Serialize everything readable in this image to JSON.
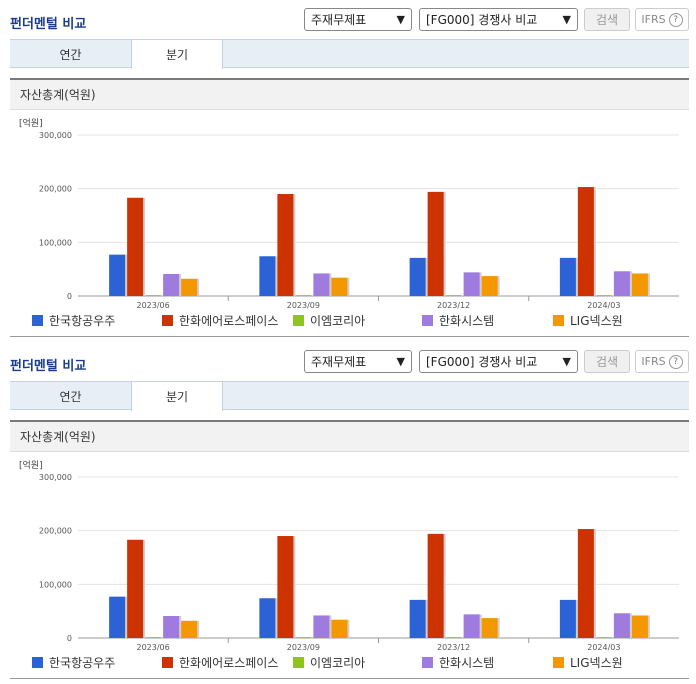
{
  "title": "펀더멘털 비교",
  "controls": {
    "select_a": "주재무제표",
    "select_b": "[FG000] 경쟁사 비교",
    "search_label": "검색",
    "ifrs_label": "IFRS",
    "help_glyph": "?"
  },
  "tabs": [
    {
      "label": "연간"
    },
    {
      "label": "분기"
    }
  ],
  "metric": "자산총계(억원)",
  "chart_data": {
    "type": "bar",
    "unit_label": "[억원]",
    "categories": [
      "2023/06",
      "2023/09",
      "2023/12",
      "2024/03"
    ],
    "y_ticks": [
      "0",
      "100,000",
      "200,000",
      "300,000"
    ],
    "ylim": [
      0,
      300000
    ],
    "grid": true,
    "legend_position": "bottom",
    "series": [
      {
        "name": "한국항공우주",
        "color": "#2b63d6",
        "values": [
          77000,
          74000,
          71000,
          71000
        ]
      },
      {
        "name": "한화에어로스페이스",
        "color": "#cc3300",
        "values": [
          183000,
          190000,
          194000,
          203000
        ]
      },
      {
        "name": "이엠코리아",
        "color": "#8fc31f",
        "values": [
          1000,
          1000,
          1000,
          1000
        ]
      },
      {
        "name": "한화시스템",
        "color": "#9f7be0",
        "values": [
          41000,
          42000,
          44000,
          46000
        ]
      },
      {
        "name": "LIG넥스원",
        "color": "#f39800",
        "values": [
          32000,
          34000,
          37000,
          42000
        ]
      }
    ]
  }
}
